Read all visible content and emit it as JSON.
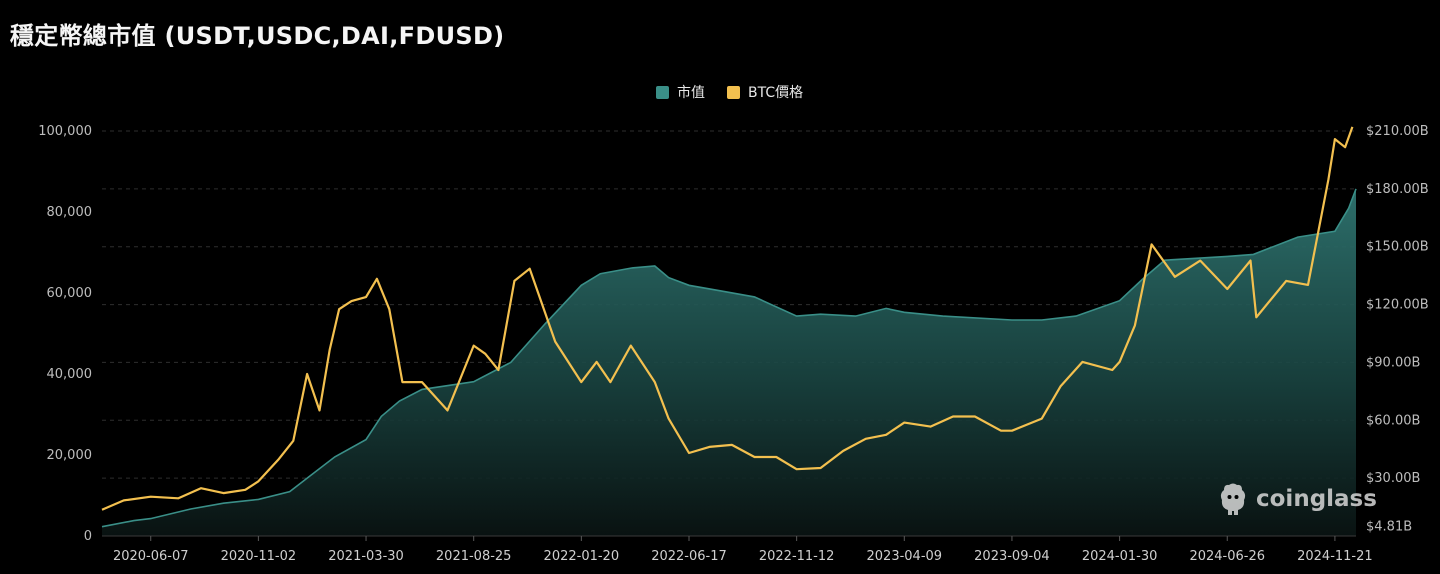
{
  "title": "穩定幣總市值 (USDT,USDC,DAI,FDUSD)",
  "legend": [
    {
      "label": "市值",
      "color": "#3a8f88"
    },
    {
      "label": "BTC價格",
      "color": "#f3c04f"
    }
  ],
  "watermark": "coinglass",
  "chart_data": {
    "type": "area",
    "title": "穩定幣總市值 (USDT,USDC,DAI,FDUSD)",
    "legend_position": "top-center",
    "grid": "horizontal-dashed",
    "x_ticks": [
      "2020-06-07",
      "2020-11-02",
      "2021-03-30",
      "2021-08-25",
      "2022-01-20",
      "2022-06-17",
      "2022-11-12",
      "2023-04-09",
      "2023-09-04",
      "2024-01-30",
      "2024-06-26",
      "2024-11-21"
    ],
    "x_range": [
      "2020-04-01",
      "2024-12-20"
    ],
    "y_left": {
      "ticks": [
        "0",
        "20,000",
        "40,000",
        "60,000",
        "80,000",
        "100,000"
      ],
      "range": [
        0,
        100000
      ]
    },
    "y_right": {
      "ticks": [
        "$4.81B",
        "$30.00B",
        "$60.00B",
        "$90.00B",
        "$120.00B",
        "$150.00B",
        "$180.00B",
        "$210.00B"
      ],
      "range_billion": [
        0,
        210
      ]
    },
    "series": [
      {
        "name": "市值",
        "axis": "right",
        "unit": "billion USD",
        "color": "#3a8f88",
        "x": [
          "2020-04-01",
          "2020-05-15",
          "2020-06-07",
          "2020-08-01",
          "2020-09-15",
          "2020-11-02",
          "2020-12-15",
          "2021-01-15",
          "2021-02-15",
          "2021-03-30",
          "2021-04-20",
          "2021-05-15",
          "2021-06-15",
          "2021-08-25",
          "2021-10-15",
          "2021-12-01",
          "2022-01-20",
          "2022-02-15",
          "2022-03-31",
          "2022-05-01",
          "2022-05-20",
          "2022-06-17",
          "2022-08-01",
          "2022-09-15",
          "2022-11-12",
          "2022-12-15",
          "2023-02-01",
          "2023-03-15",
          "2023-04-09",
          "2023-06-01",
          "2023-09-04",
          "2023-10-15",
          "2023-12-01",
          "2024-01-30",
          "2024-03-01",
          "2024-04-01",
          "2024-06-26",
          "2024-08-01",
          "2024-10-01",
          "2024-11-21",
          "2024-12-10",
          "2024-12-20"
        ],
        "values": [
          4.8,
          8,
          9,
          14,
          17,
          19,
          23,
          32,
          41,
          50,
          62,
          70,
          76,
          80,
          90,
          110,
          130,
          136,
          139,
          140,
          134,
          130,
          127,
          124,
          114,
          115,
          114,
          118,
          116,
          114,
          112,
          112,
          114,
          122,
          133,
          143,
          145,
          146,
          155,
          158,
          170,
          180
        ]
      },
      {
        "name": "BTC價格",
        "axis": "left",
        "unit": "USD",
        "color": "#f3c04f",
        "x": [
          "2020-04-01",
          "2020-05-01",
          "2020-06-07",
          "2020-07-15",
          "2020-08-15",
          "2020-09-15",
          "2020-10-15",
          "2020-11-02",
          "2020-11-30",
          "2020-12-20",
          "2021-01-08",
          "2021-01-25",
          "2021-02-08",
          "2021-02-21",
          "2021-03-10",
          "2021-03-30",
          "2021-04-14",
          "2021-05-01",
          "2021-05-19",
          "2021-06-15",
          "2021-07-20",
          "2021-08-25",
          "2021-09-10",
          "2021-09-28",
          "2021-10-20",
          "2021-11-10",
          "2021-12-15",
          "2022-01-20",
          "2022-02-10",
          "2022-03-01",
          "2022-03-29",
          "2022-05-01",
          "2022-05-20",
          "2022-06-17",
          "2022-07-15",
          "2022-08-15",
          "2022-09-15",
          "2022-10-15",
          "2022-11-12",
          "2022-12-15",
          "2023-01-15",
          "2023-02-15",
          "2023-03-15",
          "2023-04-09",
          "2023-05-15",
          "2023-06-15",
          "2023-07-15",
          "2023-08-20",
          "2023-09-04",
          "2023-10-15",
          "2023-11-10",
          "2023-12-10",
          "2024-01-20",
          "2024-01-30",
          "2024-02-20",
          "2024-03-14",
          "2024-04-15",
          "2024-05-20",
          "2024-06-26",
          "2024-07-28",
          "2024-08-05",
          "2024-09-15",
          "2024-10-15",
          "2024-11-12",
          "2024-11-21",
          "2024-12-05",
          "2024-12-15"
        ],
        "values": [
          6500,
          8800,
          9700,
          9300,
          11800,
          10600,
          11400,
          13500,
          19000,
          23500,
          40000,
          31000,
          46000,
          56000,
          58000,
          59000,
          63500,
          56000,
          38000,
          38000,
          31000,
          47000,
          45000,
          41000,
          63000,
          66000,
          48000,
          38000,
          43000,
          38000,
          47000,
          38000,
          29000,
          20500,
          22000,
          22500,
          19500,
          19500,
          16500,
          16800,
          21000,
          24000,
          25000,
          28000,
          27000,
          29500,
          29500,
          26000,
          26000,
          29000,
          37000,
          43000,
          41000,
          43000,
          52000,
          72000,
          64000,
          68000,
          61000,
          68000,
          54000,
          63000,
          62000,
          88000,
          98000,
          96000,
          101000
        ]
      }
    ]
  }
}
